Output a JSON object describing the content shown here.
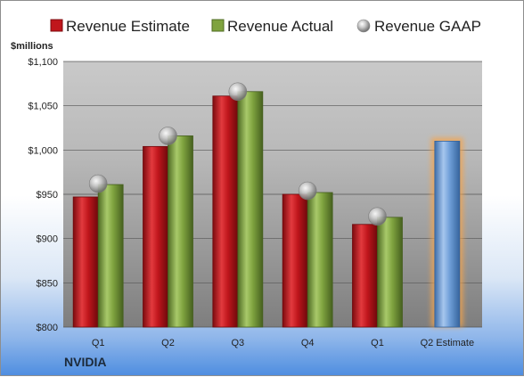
{
  "chart_data": {
    "type": "bar",
    "unit_label": "$millions",
    "company": "NVIDIA",
    "categories": [
      "Q1",
      "Q2",
      "Q3",
      "Q4",
      "Q1",
      "Q2 Estimate"
    ],
    "series": [
      {
        "name": "Revenue Estimate",
        "kind": "bar",
        "color": "#c0161c",
        "values": [
          947,
          1004,
          1061,
          950,
          916,
          null
        ]
      },
      {
        "name": "Revenue Actual",
        "kind": "bar",
        "color": "#7fa33f",
        "values": [
          961,
          1016,
          1066,
          952,
          924,
          null
        ]
      },
      {
        "name": "Revenue GAAP",
        "kind": "marker",
        "color": "#a9a9a9",
        "values": [
          962,
          1016,
          1066,
          954,
          925,
          null
        ]
      }
    ],
    "highlight": {
      "category": "Q2 Estimate",
      "value": 1010,
      "color": "#6f9fd8",
      "glow": "#f7a44a"
    },
    "yticks": [
      "$800",
      "$850",
      "$900",
      "$950",
      "$1,000",
      "$1,050",
      "$1,100"
    ],
    "ytick_values": [
      800,
      850,
      900,
      950,
      1000,
      1050,
      1100
    ],
    "ylim": [
      800,
      1100
    ],
    "grid": true,
    "legend_position": "top"
  }
}
